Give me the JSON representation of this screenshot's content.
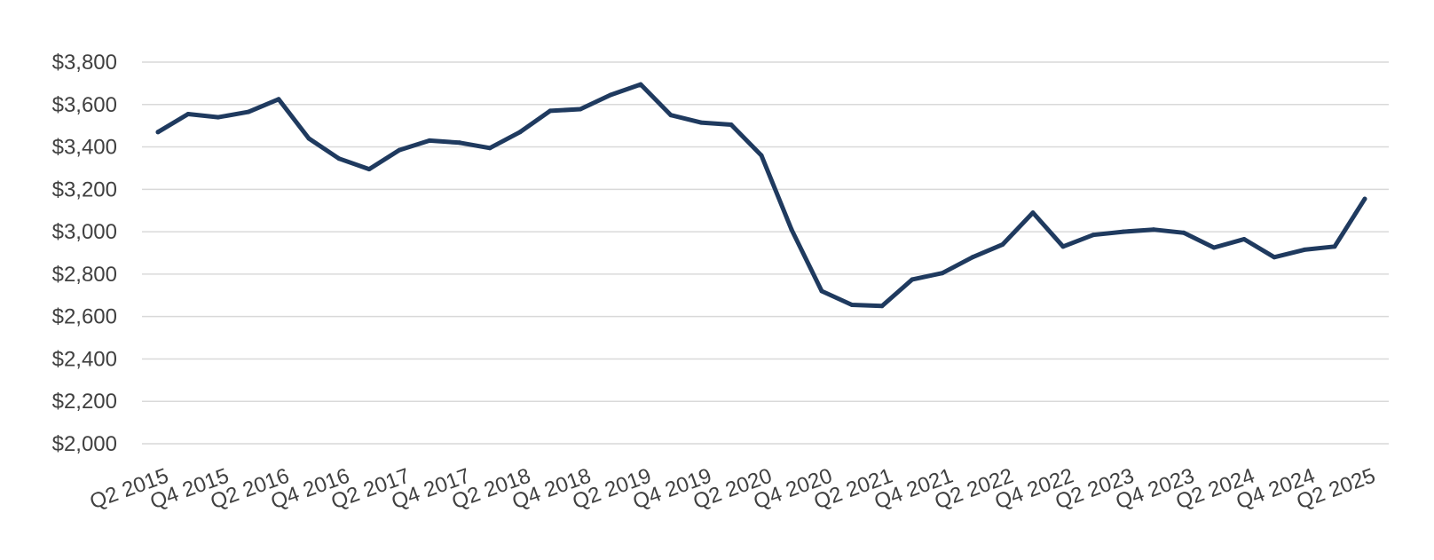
{
  "chart_data": {
    "type": "line",
    "title": "",
    "xlabel": "",
    "ylabel": "",
    "ylim": [
      2000,
      3800
    ],
    "yticks": [
      2000,
      2200,
      2400,
      2600,
      2800,
      3000,
      3200,
      3400,
      3600,
      3800
    ],
    "ytick_labels": [
      "$2,000",
      "$2,200",
      "$2,400",
      "$2,600",
      "$2,800",
      "$3,000",
      "$3,200",
      "$3,400",
      "$3,600",
      "$3,800"
    ],
    "grid": true,
    "legend": "none",
    "line_color": "#1f3a5f",
    "x": [
      "Q2 2015",
      "Q3 2015",
      "Q4 2015",
      "Q1 2016",
      "Q2 2016",
      "Q3 2016",
      "Q4 2016",
      "Q1 2017",
      "Q2 2017",
      "Q3 2017",
      "Q4 2017",
      "Q1 2018",
      "Q2 2018",
      "Q3 2018",
      "Q4 2018",
      "Q1 2019",
      "Q2 2019",
      "Q3 2019",
      "Q4 2019",
      "Q1 2020",
      "Q2 2020",
      "Q3 2020",
      "Q4 2020",
      "Q1 2021",
      "Q2 2021",
      "Q3 2021",
      "Q4 2021",
      "Q1 2022",
      "Q2 2022",
      "Q3 2022",
      "Q4 2022",
      "Q1 2023",
      "Q2 2023",
      "Q3 2023",
      "Q4 2023",
      "Q1 2024",
      "Q2 2024",
      "Q3 2024",
      "Q4 2024",
      "Q1 2025",
      "Q2 2025"
    ],
    "x_tick_labels": [
      "Q2 2015",
      "Q4 2015",
      "Q2 2016",
      "Q4 2016",
      "Q2 2017",
      "Q4 2017",
      "Q2 2018",
      "Q4 2018",
      "Q2 2019",
      "Q4 2019",
      "Q2 2020",
      "Q4 2020",
      "Q2 2021",
      "Q4 2021",
      "Q2 2022",
      "Q4 2022",
      "Q2 2023",
      "Q4 2023",
      "Q2 2024",
      "Q4 2024",
      "Q2 2025"
    ],
    "series": [
      {
        "values": [
          3470,
          3555,
          3540,
          3565,
          3625,
          3440,
          3345,
          3295,
          3385,
          3430,
          3420,
          3395,
          3470,
          3570,
          3578,
          3645,
          3695,
          3550,
          3515,
          3505,
          3360,
          3010,
          2720,
          2655,
          2650,
          2775,
          2805,
          2880,
          2940,
          3090,
          2930,
          2985,
          3000,
          3010,
          2995,
          2925,
          2965,
          2880,
          2915,
          2930,
          3155
        ]
      }
    ]
  }
}
